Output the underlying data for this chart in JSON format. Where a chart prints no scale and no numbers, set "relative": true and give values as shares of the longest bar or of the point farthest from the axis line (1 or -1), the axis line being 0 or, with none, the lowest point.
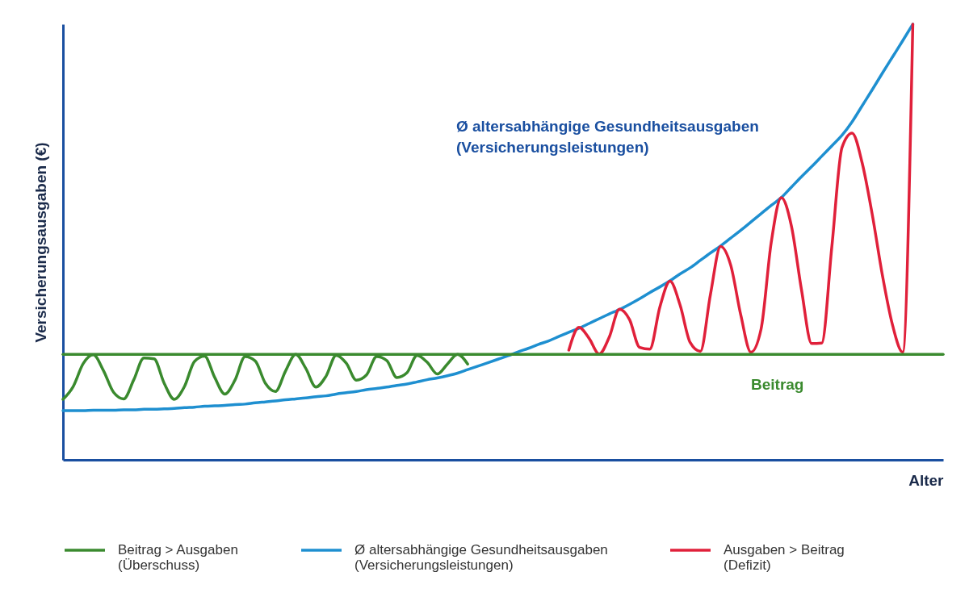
{
  "chart_data": {
    "type": "line",
    "relative": true,
    "xlabel": "Alter",
    "ylabel": "Versicherungsausgaben (€)",
    "categories": [
      null,
      null,
      null,
      null,
      null,
      null,
      null,
      null,
      null,
      null,
      null,
      null,
      null,
      null,
      null,
      null,
      null,
      null,
      null,
      null,
      null,
      null,
      null,
      null,
      null,
      null,
      null,
      null,
      null,
      null,
      null,
      null,
      null,
      null,
      null,
      null,
      null,
      null,
      null,
      null,
      null,
      null,
      null,
      null,
      null,
      null,
      null,
      null,
      null,
      null,
      null,
      null,
      null,
      null,
      null,
      null,
      null,
      null,
      null,
      null,
      null,
      null,
      null,
      null,
      null,
      null,
      null,
      null,
      null,
      null,
      null,
      null,
      null,
      null,
      null,
      null,
      null,
      null,
      null,
      null,
      null,
      null,
      null,
      null,
      null,
      null,
      null,
      null
    ],
    "series": [
      {
        "name": "Beitrag > Ausgaben (Überschuss)",
        "color": "#3a8a2e",
        "values": [
          0.139,
          0.168,
          0.221,
          0.241,
          0.205,
          0.155,
          0.14,
          0.184,
          0.234,
          0.232,
          0.176,
          0.139,
          0.168,
          0.226,
          0.238,
          0.189,
          0.151,
          0.183,
          0.237,
          0.227,
          0.176,
          0.157,
          0.204,
          0.242,
          0.21,
          0.167,
          0.192,
          0.24,
          0.222,
          0.183,
          0.195,
          0.237,
          0.228,
          0.189,
          0.2,
          0.24,
          0.224,
          0.197,
          0.22,
          0.242,
          0.22,
          null,
          null,
          null,
          null,
          null,
          null,
          null,
          null,
          null,
          null,
          null,
          null,
          null,
          null,
          null,
          null,
          null,
          null,
          null,
          null,
          null,
          null,
          null,
          null,
          null,
          null,
          null,
          null,
          null,
          null,
          null,
          null,
          null,
          null,
          null,
          null,
          null,
          null,
          null,
          null,
          null,
          null,
          null,
          null,
          null,
          null,
          null
        ]
      },
      {
        "name": "Ø altersabhängige Gesundheitsausgaben (Versicherungsleistungen)",
        "color": "#1e8fd0",
        "values": [
          0.113,
          0.113,
          0.113,
          0.114,
          0.114,
          0.114,
          0.115,
          0.115,
          0.116,
          0.116,
          0.117,
          0.118,
          0.12,
          0.121,
          0.123,
          0.124,
          0.125,
          0.127,
          0.128,
          0.131,
          0.133,
          0.135,
          0.138,
          0.14,
          0.142,
          0.145,
          0.147,
          0.151,
          0.154,
          0.157,
          0.161,
          0.164,
          0.167,
          0.171,
          0.174,
          0.179,
          0.184,
          0.188,
          0.193,
          0.199,
          0.207,
          0.215,
          0.223,
          0.231,
          0.239,
          0.248,
          0.256,
          0.265,
          0.273,
          0.283,
          0.293,
          0.302,
          0.313,
          0.324,
          0.335,
          0.345,
          0.357,
          0.37,
          0.384,
          0.397,
          0.411,
          0.427,
          0.441,
          0.458,
          0.475,
          0.491,
          0.509,
          0.527,
          0.546,
          0.565,
          0.584,
          0.602,
          0.626,
          0.65,
          0.673,
          0.697,
          0.721,
          0.745,
          0.776,
          0.813,
          0.85,
          0.888,
          0.925,
          0.962,
          1.0,
          null,
          null,
          null
        ]
      },
      {
        "name": "Ausgaben > Beitrag (Defizit)",
        "color": "#e0203a",
        "values": [
          null,
          null,
          null,
          null,
          null,
          null,
          null,
          null,
          null,
          null,
          null,
          null,
          null,
          null,
          null,
          null,
          null,
          null,
          null,
          null,
          null,
          null,
          null,
          null,
          null,
          null,
          null,
          null,
          null,
          null,
          null,
          null,
          null,
          null,
          null,
          null,
          null,
          null,
          null,
          null,
          null,
          null,
          null,
          null,
          null,
          null,
          null,
          null,
          null,
          null,
          0.252,
          0.304,
          0.279,
          0.243,
          0.282,
          0.346,
          0.322,
          0.258,
          0.254,
          0.351,
          0.41,
          0.355,
          0.269,
          0.249,
          0.38,
          0.49,
          0.447,
          0.332,
          0.247,
          0.3,
          0.498,
          0.602,
          0.537,
          0.39,
          0.267,
          0.268,
          0.49,
          0.717,
          0.75,
          0.681,
          0.562,
          0.423,
          0.309,
          0.247,
          1.0,
          null,
          null,
          null
        ]
      },
      {
        "color": "#3a8a2e",
        "values": [
          0.242,
          0.242,
          0.242,
          0.242,
          0.242,
          0.242,
          0.242,
          0.242,
          0.242,
          0.242,
          0.242,
          0.242,
          0.242,
          0.242,
          0.242,
          0.242,
          0.242,
          0.242,
          0.242,
          0.242,
          0.242,
          0.242,
          0.242,
          0.242,
          0.242,
          0.242,
          0.242,
          0.242,
          0.242,
          0.242,
          0.242,
          0.242,
          0.242,
          0.242,
          0.242,
          0.242,
          0.242,
          0.242,
          0.242,
          0.242,
          0.242,
          0.242,
          0.242,
          0.242,
          0.242,
          0.242,
          0.242,
          0.242,
          0.242,
          0.242,
          0.242,
          0.242,
          0.242,
          0.242,
          0.242,
          0.242,
          0.242,
          0.242,
          0.242,
          0.242,
          0.242,
          0.242,
          0.242,
          0.242,
          0.242,
          0.242,
          0.242,
          0.242,
          0.242,
          0.242,
          0.242,
          0.242,
          0.242,
          0.242,
          0.242,
          0.242,
          0.242,
          0.242,
          0.242,
          0.242,
          0.242,
          0.242,
          0.242,
          0.242,
          0.242,
          0.242,
          0.242,
          0.242
        ]
      }
    ],
    "annotations": [
      "Ø altersabhängige Gesundheitsausgaben (Versicherungsleistungen)",
      "Beitrag"
    ],
    "legend": "bottom",
    "marker": "none",
    "line_style": "solid"
  }
}
